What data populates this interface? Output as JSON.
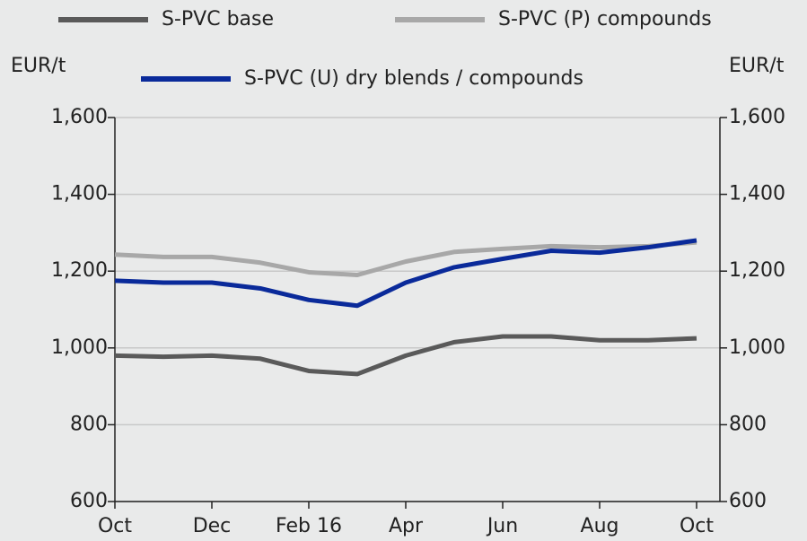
{
  "chart_data": {
    "type": "line",
    "ylabel": "EUR/t",
    "y2label": "EUR/t",
    "categories": [
      "Oct",
      null,
      "Dec",
      null,
      "Feb 16",
      null,
      "Apr",
      null,
      "Jun",
      null,
      "Aug",
      null,
      "Oct"
    ],
    "series": [
      {
        "name": "S-PVC base",
        "color": "#5a5a5a",
        "values": [
          980,
          977,
          980,
          972,
          940,
          932,
          980,
          1015,
          1030,
          1030,
          1020,
          1020,
          1025
        ]
      },
      {
        "name": "S-PVC (P) compounds",
        "color": "#a8a8a8",
        "values": [
          1243,
          1237,
          1237,
          1222,
          1197,
          1190,
          1225,
          1250,
          1258,
          1265,
          1262,
          1265,
          1275
        ]
      },
      {
        "name": "S-PVC (U) dry blends / compounds",
        "color": "#0a2a9a",
        "values": [
          1175,
          1170,
          1170,
          1155,
          1125,
          1110,
          1170,
          1210,
          1232,
          1253,
          1248,
          1262,
          1280
        ]
      }
    ],
    "ylim": [
      600,
      1600
    ],
    "yticks": [
      600,
      800,
      {
        "value": 1000,
        "label": "1,000"
      },
      {
        "value": 1200,
        "label": "1,200"
      },
      {
        "value": 1400,
        "label": "1,400"
      },
      {
        "value": 1600,
        "label": "1,600"
      }
    ],
    "y2lim": [
      600,
      1600
    ],
    "y2ticks": [
      600,
      800,
      {
        "value": 1000,
        "label": "1,000"
      },
      {
        "value": 1200,
        "label": "1,200"
      },
      {
        "value": 1400,
        "label": "1,400"
      },
      {
        "value": 1600,
        "label": "1,600"
      }
    ],
    "grid": true
  }
}
